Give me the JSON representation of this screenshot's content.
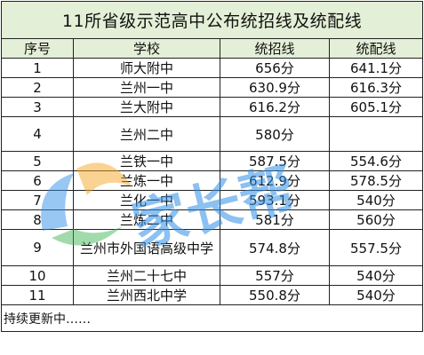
{
  "title": "11所省级示范高中公布统招线及统配线",
  "headers": [
    "序号",
    "学校",
    "统招线",
    "统配线"
  ],
  "rows": [
    {
      "no": "1",
      "school": "师大附中",
      "tongzhao": "656分",
      "tongpei": "641.1分"
    },
    {
      "no": "2",
      "school": "兰州一中",
      "tongzhao": "630.9分",
      "tongpei": "616.3分"
    },
    {
      "no": "3",
      "school": "兰大附中",
      "tongzhao": "616.2分",
      "tongpei": "605.1分"
    },
    {
      "no": "4",
      "school": "兰州二中",
      "tongzhao": "580分",
      "tongpei": ""
    },
    {
      "no": "5",
      "school": "兰铁一中",
      "tongzhao": "587.5分",
      "tongpei": "554.6分"
    },
    {
      "no": "6",
      "school": "兰炼一中",
      "tongzhao": "612.9分",
      "tongpei": "578.5分"
    },
    {
      "no": "7",
      "school": "兰化一中",
      "tongzhao": "593.1分",
      "tongpei": "540分"
    },
    {
      "no": "8",
      "school": "兰炼二中",
      "tongzhao": "581分",
      "tongpei": "560分"
    },
    {
      "no": "9",
      "school": "兰州市外国语高级中学",
      "tongzhao": "574.8分",
      "tongpei": "557.5分"
    },
    {
      "no": "10",
      "school": "兰州二十七中",
      "tongzhao": "557分",
      "tongpei": "540分"
    },
    {
      "no": "11",
      "school": "兰州西北中学",
      "tongzhao": "550.8分",
      "tongpei": "540分"
    }
  ],
  "footer": "持续更新中……",
  "watermark": {
    "text": "家长帮",
    "color_blue": "#2f8fe6",
    "color_orange": "#f5a623"
  }
}
